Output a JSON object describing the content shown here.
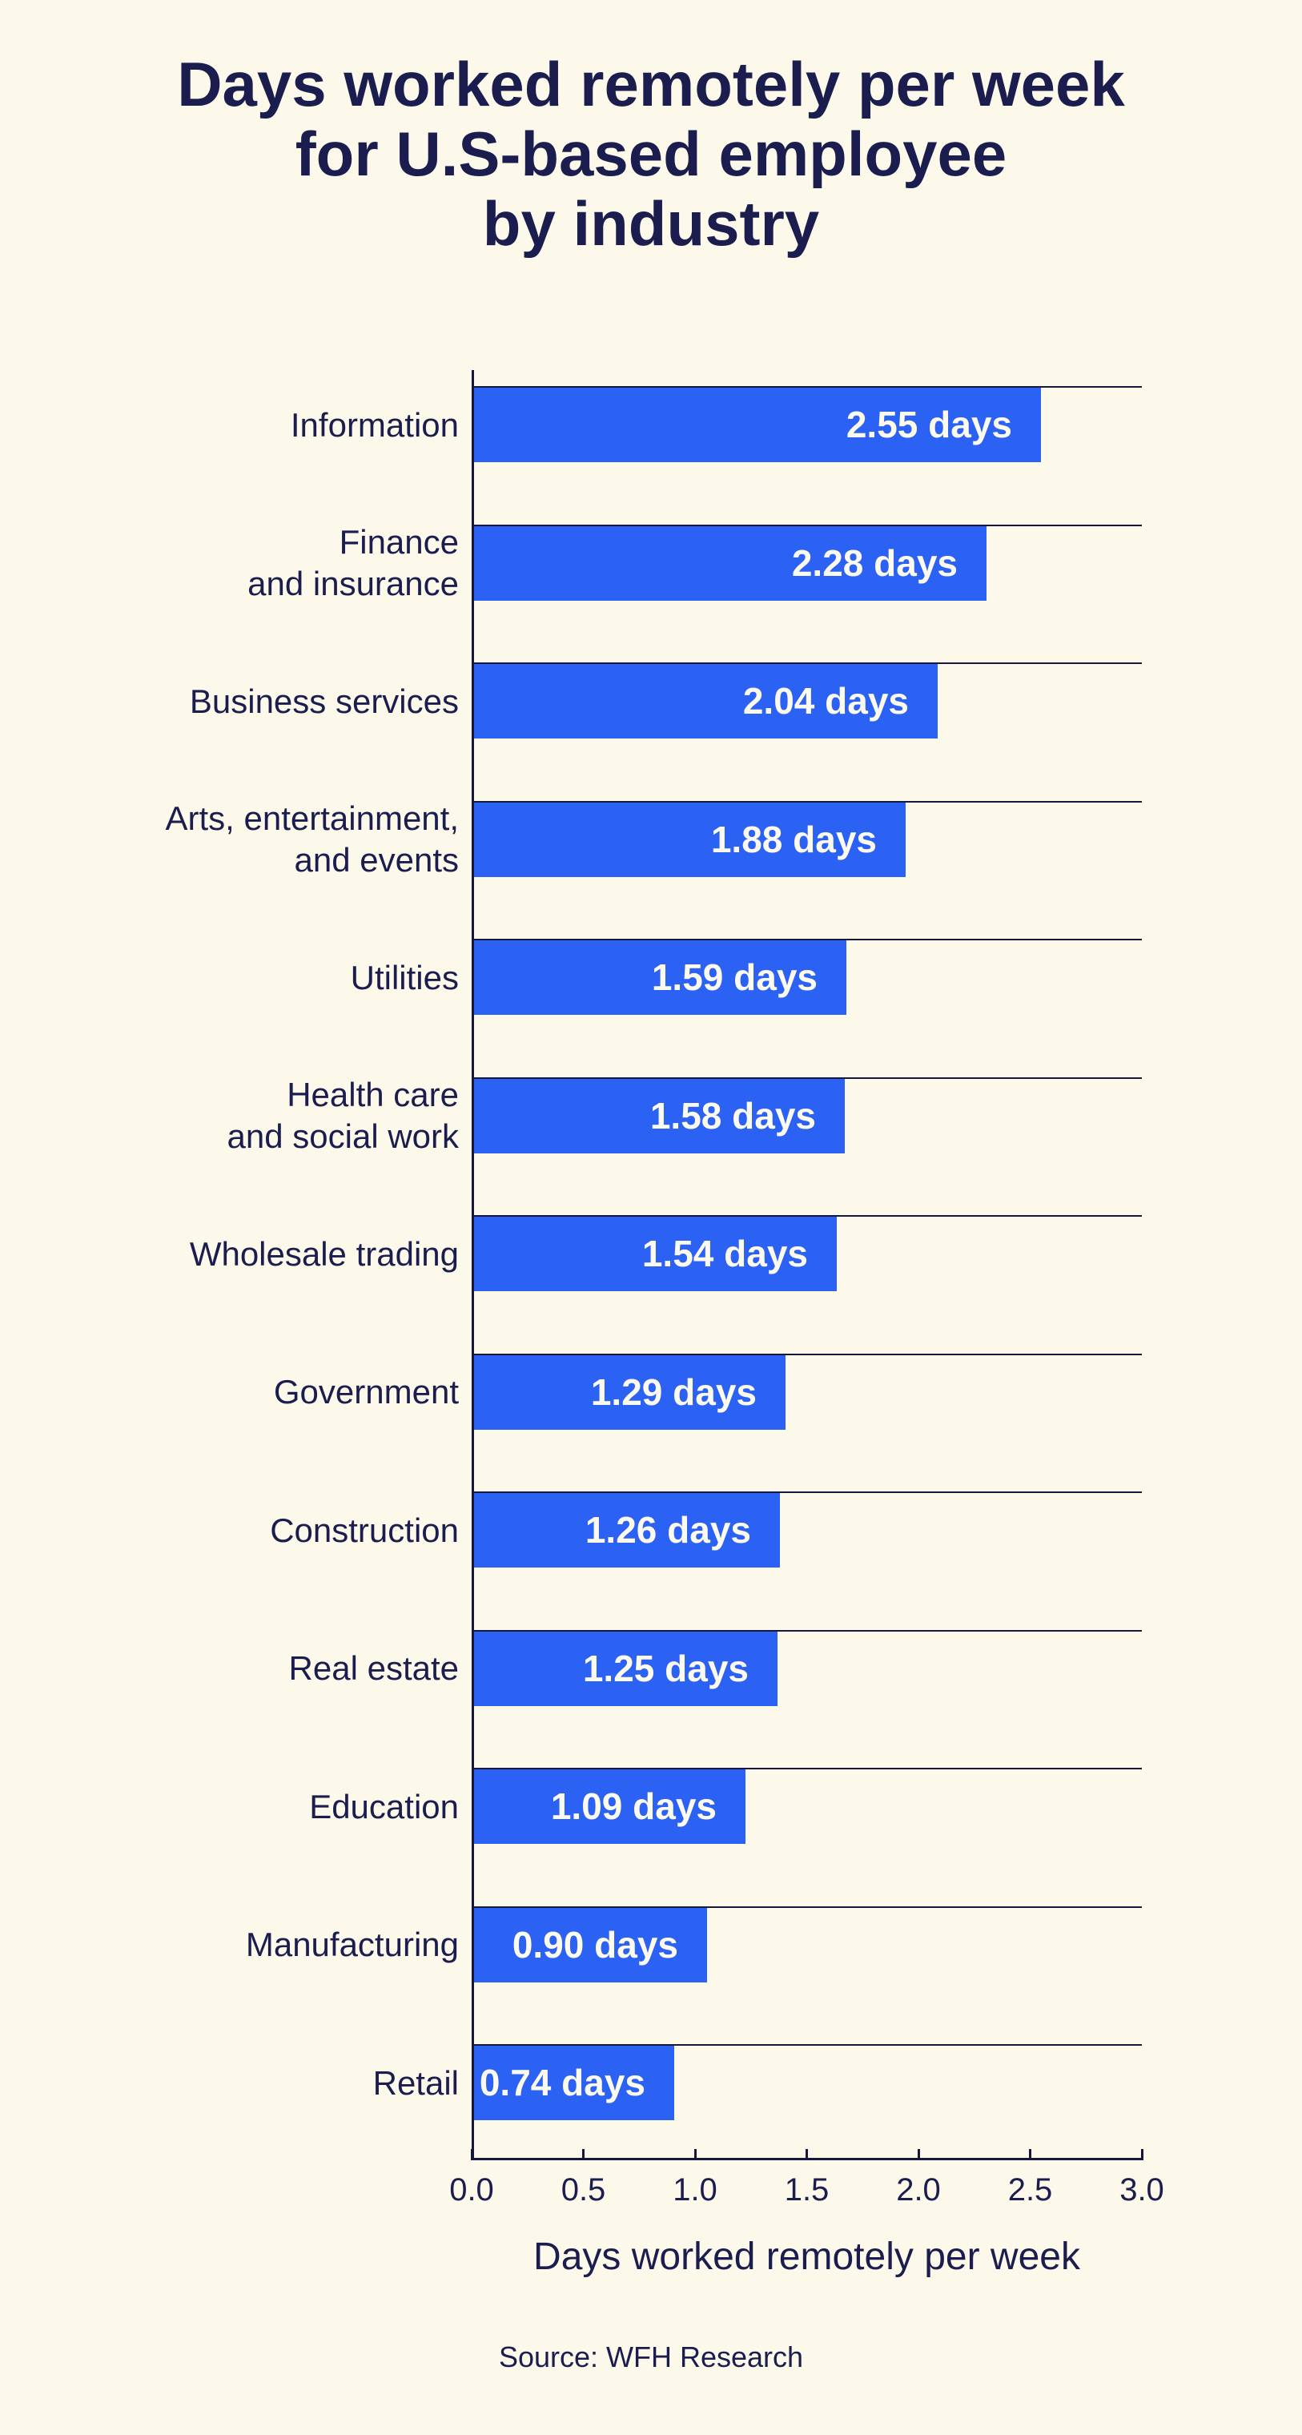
{
  "title": {
    "lines": [
      "Days worked remotely per week",
      "for U.S-based employee",
      "by industry"
    ],
    "full": "Days worked remotely per week for U.S-based employee by industry"
  },
  "chart_data": {
    "type": "bar",
    "orientation": "horizontal",
    "title": "Days worked remotely per week for U.S-based employee by industry",
    "xlabel": "Days worked remotely per week",
    "ylabel": "",
    "xlim": [
      0.0,
      3.0
    ],
    "x_ticks": [
      "0.0",
      "0.5",
      "1.0",
      "1.5",
      "2.0",
      "2.5",
      "3.0"
    ],
    "grid": "one horizontal gridline at the top edge of each bar, spanning full plot width",
    "legend": "none",
    "categories": [
      "Information",
      "Finance and insurance",
      "Business services",
      "Arts, entertainment, and events",
      "Utilities",
      "Health care and social work",
      "Wholesale trading",
      "Government",
      "Construction",
      "Real estate",
      "Education",
      "Manufacturing",
      "Retail"
    ],
    "category_label_lines": [
      [
        "Information"
      ],
      [
        "Finance",
        "and insurance"
      ],
      [
        "Business services"
      ],
      [
        "Arts, entertainment,",
        "and events"
      ],
      [
        "Utilities"
      ],
      [
        "Health care",
        "and social work"
      ],
      [
        "Wholesale trading"
      ],
      [
        "Government"
      ],
      [
        "Construction"
      ],
      [
        "Real estate"
      ],
      [
        "Education"
      ],
      [
        "Manufacturing"
      ],
      [
        "Retail"
      ]
    ],
    "values": [
      2.55,
      2.28,
      2.04,
      1.88,
      1.59,
      1.58,
      1.54,
      1.29,
      1.26,
      1.25,
      1.09,
      0.9,
      0.74
    ],
    "value_labels": [
      "2.55 days",
      "2.28 days",
      "2.04 days",
      "1.88 days",
      "1.59 days",
      "1.58 days",
      "1.54 days",
      "1.29 days",
      "1.26 days",
      "1.25 days",
      "1.09 days",
      "0.90 days",
      "0.74 days"
    ]
  },
  "x_axis_title": "Days worked remotely per week",
  "source": "Source: WFH Research",
  "colors": {
    "background": "#FCF9EA",
    "bar": "#2B62F4",
    "text_navy": "#1B1D4F",
    "axis_line": "#15173F",
    "bar_label_text": "#FCF9EE"
  }
}
